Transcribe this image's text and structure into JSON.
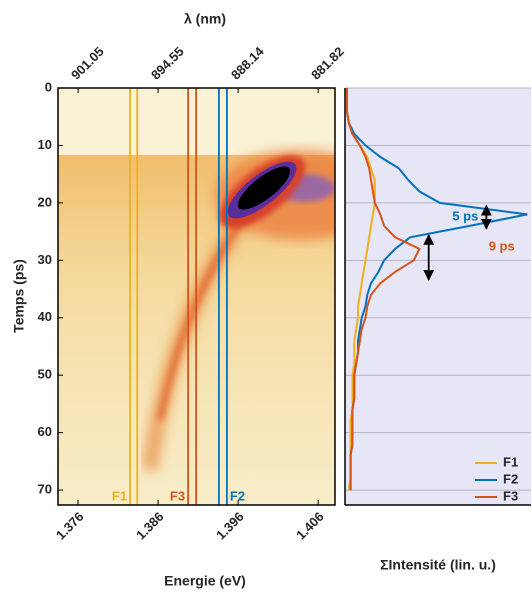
{
  "chart_data": [
    {
      "type": "heatmap",
      "x2label": "λ (nm)",
      "xlabel": "Energie (eV)",
      "ylabel": "Temps (ps)",
      "xlim": [
        1.3735,
        1.4081
      ],
      "xticks": [
        1.376,
        1.386,
        1.396,
        1.406
      ],
      "x2lim": [
        902.7,
        880.5
      ],
      "x2scale": "reciprocal",
      "x2ticks": [
        901.05,
        894.55,
        888.14,
        881.82
      ],
      "ylim": [
        0,
        72.6
      ],
      "yticks": [
        0,
        10,
        20,
        30,
        40,
        50,
        60,
        70
      ]
    },
    {
      "type": "line",
      "xlabel": "ΣIntensité (lin. u.)",
      "xlim": [
        0,
        1
      ],
      "ylim": [
        0,
        72.6
      ],
      "yticks": [
        0,
        10,
        20,
        30,
        40,
        50,
        60,
        70
      ],
      "grid": true,
      "legend": "lower right",
      "x": [
        0,
        2,
        4,
        6,
        8,
        10,
        12,
        14,
        16,
        18,
        20,
        22,
        24,
        26,
        28,
        30,
        32,
        34,
        36,
        38,
        40,
        42,
        44,
        46,
        48,
        50,
        52,
        54,
        56,
        58,
        60,
        62,
        64,
        66,
        68,
        70
      ],
      "series": [
        {
          "name": "F1",
          "color": "#edb120",
          "band": [
            1.3825,
            1.3834
          ],
          "values": [
            0.01,
            0.01,
            0.01,
            0.02,
            0.04,
            0.08,
            0.12,
            0.14,
            0.16,
            0.16,
            0.16,
            0.15,
            0.14,
            0.13,
            0.12,
            0.11,
            0.1,
            0.09,
            0.08,
            0.07,
            0.07,
            0.06,
            0.05,
            0.05,
            0.05,
            0.04,
            0.04,
            0.04,
            0.04,
            0.03,
            0.03,
            0.03,
            0.03,
            0.03,
            0.03,
            0.02
          ]
        },
        {
          "name": "F2",
          "color": "#0072bd",
          "band": [
            1.3936,
            1.3946
          ],
          "values": [
            0.01,
            0.01,
            0.01,
            0.02,
            0.05,
            0.11,
            0.19,
            0.29,
            0.34,
            0.4,
            0.51,
            0.98,
            0.67,
            0.35,
            0.27,
            0.21,
            0.18,
            0.14,
            0.12,
            0.11,
            0.09,
            0.08,
            0.07,
            0.07,
            0.06,
            0.05,
            0.05,
            0.05,
            0.04,
            0.04,
            0.04,
            0.04,
            0.03,
            0.03,
            0.03,
            0.03
          ]
        },
        {
          "name": "F3",
          "color": "#d95319",
          "band": [
            1.38975,
            1.39075
          ],
          "values": [
            0.01,
            0.01,
            0.01,
            0.02,
            0.04,
            0.08,
            0.11,
            0.13,
            0.14,
            0.15,
            0.16,
            0.19,
            0.21,
            0.27,
            0.4,
            0.37,
            0.27,
            0.19,
            0.14,
            0.12,
            0.11,
            0.09,
            0.08,
            0.07,
            0.06,
            0.05,
            0.05,
            0.05,
            0.04,
            0.04,
            0.04,
            0.04,
            0.03,
            0.03,
            0.03,
            0.03
          ]
        }
      ],
      "annotations": [
        {
          "text": "5 ps",
          "color": "#0072bd",
          "t": [
            20.5,
            24.5
          ],
          "at": 0.76
        },
        {
          "text": "9 ps",
          "color": "#d95319",
          "t": [
            25.6,
            33.4
          ],
          "at": 0.45
        }
      ]
    }
  ]
}
